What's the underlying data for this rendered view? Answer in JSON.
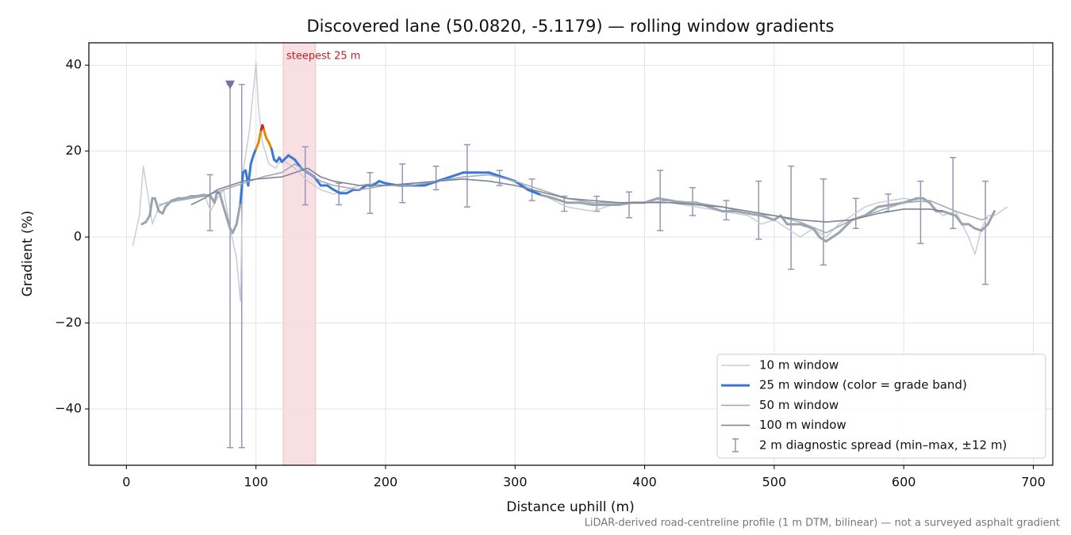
{
  "chart_data": {
    "type": "line",
    "title": "Discovered lane (50.0820, -5.1179) — rolling window gradients",
    "x_label": "Distance uphill (m)",
    "y_label": "Gradient (%)",
    "footnote": "LiDAR-derived road-centreline profile (1 m DTM, bilinear) — not a surveyed asphalt gradient",
    "xlim": [
      -29,
      715
    ],
    "ylim": [
      -53.1,
      45.2
    ],
    "xticks": [
      0,
      100,
      200,
      300,
      400,
      500,
      600,
      700
    ],
    "yticks": [
      {
        "value": -40,
        "label": "−40"
      },
      {
        "value": -20,
        "label": "−20"
      },
      0,
      20,
      40
    ],
    "grid": true,
    "legend": "lower right",
    "span": {
      "start": 121,
      "end": 146,
      "label": "steepest 25 m",
      "color": "#e8a3ad"
    },
    "marker": {
      "x": 80,
      "y": 35.5,
      "color": "#7b6fa0"
    },
    "series": [
      {
        "name": "10 m window",
        "color": "#c8cdd4",
        "width": 1.5,
        "x": [
          5,
          10,
          13,
          17,
          20,
          25,
          30,
          40,
          50,
          60,
          65,
          70,
          75,
          80,
          85,
          88,
          90,
          95,
          100,
          102,
          105,
          110,
          115,
          120,
          130,
          140,
          150,
          160,
          170,
          180,
          190,
          200,
          220,
          240,
          260,
          280,
          300,
          320,
          340,
          360,
          380,
          400,
          420,
          440,
          460,
          480,
          490,
          500,
          510,
          520,
          530,
          540,
          550,
          560,
          570,
          580,
          600,
          620,
          630,
          640,
          650,
          655,
          660,
          665,
          670,
          680
        ],
        "values": [
          -2,
          5,
          16.5,
          9,
          3,
          7,
          8,
          9,
          9.5,
          10,
          6,
          9,
          11,
          2,
          -5,
          -15,
          15,
          25,
          40.5,
          30,
          22,
          17,
          16,
          18,
          16,
          13,
          11,
          10,
          11,
          12,
          12.5,
          12,
          12,
          13,
          15,
          15,
          13,
          10,
          7,
          6,
          8,
          8,
          8,
          7,
          6,
          5,
          3,
          4,
          2,
          0,
          2,
          0,
          3,
          5,
          7,
          8,
          9,
          8,
          5,
          6,
          0,
          -4,
          2,
          5,
          5,
          7
        ]
      },
      {
        "name": "25 m window (color = grade band)",
        "color": "#3a78d8",
        "width": 3,
        "base_color": "#9aa3ae",
        "grade_bands": [
          {
            "min": 10,
            "color": "#3a78d8"
          },
          {
            "min": 20,
            "color": "#e08c00"
          },
          {
            "min": 25,
            "color": "#c62828"
          }
        ],
        "x": [
          12,
          15,
          18,
          20,
          22,
          25,
          28,
          30,
          35,
          40,
          45,
          50,
          55,
          60,
          65,
          68,
          70,
          72,
          75,
          78,
          80,
          82,
          85,
          88,
          90,
          92,
          94,
          96,
          98,
          100,
          102,
          104,
          105,
          106,
          108,
          110,
          112,
          114,
          116,
          118,
          120,
          125,
          130,
          135,
          140,
          145,
          150,
          155,
          160,
          165,
          170,
          175,
          180,
          185,
          190,
          195,
          200,
          210,
          220,
          230,
          240,
          250,
          260,
          270,
          280,
          290,
          300,
          310,
          320,
          330,
          340,
          350,
          360,
          370,
          380,
          390,
          400,
          410,
          420,
          430,
          440,
          450,
          460,
          470,
          480,
          490,
          500,
          505,
          510,
          520,
          530,
          535,
          540,
          545,
          550,
          560,
          570,
          580,
          590,
          600,
          610,
          615,
          620,
          625,
          630,
          640,
          645,
          650,
          655,
          660,
          665,
          670
        ],
        "values": [
          3,
          3.5,
          5,
          9,
          9,
          6,
          5.5,
          7,
          8.5,
          9,
          9,
          9.5,
          9.5,
          9.8,
          9.5,
          8,
          10.5,
          10.2,
          7,
          4,
          2,
          1,
          3,
          8,
          15,
          15.5,
          12,
          17,
          19,
          20.5,
          22,
          25,
          26,
          25,
          23,
          22,
          20.5,
          18,
          17.5,
          18.5,
          17.5,
          19,
          18,
          16,
          15,
          14,
          12,
          12,
          11,
          10.2,
          10.2,
          11,
          11,
          12,
          12,
          13,
          12.5,
          12,
          12,
          12,
          13,
          14,
          15,
          15,
          15,
          14,
          13,
          11,
          9.8,
          9,
          8,
          8,
          7.5,
          7.5,
          7.5,
          8,
          8,
          9,
          8.5,
          8,
          8,
          7,
          6,
          6,
          5.5,
          5,
          4,
          5,
          3,
          3,
          2,
          0,
          -1,
          0,
          1,
          4,
          5,
          7,
          7.5,
          8,
          9,
          9,
          8,
          6,
          6,
          5,
          3,
          3,
          2,
          1.5,
          3,
          6
        ]
      },
      {
        "name": "50 m window",
        "color": "#a3abb6",
        "width": 1.6,
        "x": [
          25,
          40,
          60,
          75,
          85,
          95,
          105,
          120,
          130,
          140,
          150,
          160,
          180,
          200,
          220,
          240,
          260,
          280,
          300,
          320,
          340,
          360,
          380,
          400,
          420,
          440,
          460,
          480,
          500,
          520,
          540,
          560,
          580,
          600,
          620,
          640,
          660,
          665
        ],
        "values": [
          7.5,
          8.5,
          9.5,
          11,
          12,
          13,
          14,
          15,
          17,
          15,
          13,
          12,
          11,
          12,
          12,
          13,
          14,
          14.5,
          13,
          11,
          9,
          8,
          8,
          8,
          8.5,
          8,
          7,
          5.5,
          5,
          3.5,
          1,
          4,
          6,
          8,
          8.5,
          6,
          4,
          4.5
        ]
      },
      {
        "name": "100 m window",
        "color": "#7d8494",
        "width": 1.6,
        "x": [
          50,
          60,
          70,
          80,
          90,
          100,
          120,
          140,
          150,
          160,
          180,
          200,
          220,
          240,
          260,
          280,
          300,
          320,
          340,
          360,
          380,
          400,
          420,
          440,
          460,
          480,
          500,
          520,
          540,
          560,
          580,
          600,
          620,
          630
        ],
        "values": [
          7.5,
          9,
          11,
          12,
          13,
          13.5,
          14,
          16,
          14,
          13,
          12,
          12,
          12.5,
          13,
          13.5,
          13,
          12,
          10.5,
          9,
          8.5,
          8,
          8,
          8,
          7.5,
          7,
          6,
          5,
          4,
          3.5,
          4,
          5.5,
          6.5,
          6.5,
          6
        ]
      }
    ],
    "spread": {
      "name": "2 m diagnostic spread (min–max, ±12 m)",
      "color": "#9a93b8",
      "x": [
        64.5,
        80,
        89,
        138,
        164,
        188,
        213,
        239,
        263,
        288,
        313,
        338,
        363,
        388,
        412,
        437,
        463,
        488,
        513,
        538,
        563,
        588,
        613,
        638,
        663
      ],
      "low": [
        1.5,
        -49,
        -49,
        7.5,
        7.5,
        5.5,
        8,
        11,
        7,
        12,
        8.5,
        6,
        6,
        4.5,
        1.5,
        5,
        4,
        -0.5,
        -7.5,
        -6.5,
        2,
        6,
        -1.5,
        2,
        -11
      ],
      "high": [
        14.5,
        35.5,
        35.5,
        21,
        12.5,
        15,
        17,
        16.5,
        21.5,
        15.5,
        13.5,
        9.5,
        9.5,
        10.5,
        15.5,
        11.5,
        8.5,
        13,
        16.5,
        13.5,
        9,
        10,
        13,
        18.5,
        13
      ]
    }
  }
}
